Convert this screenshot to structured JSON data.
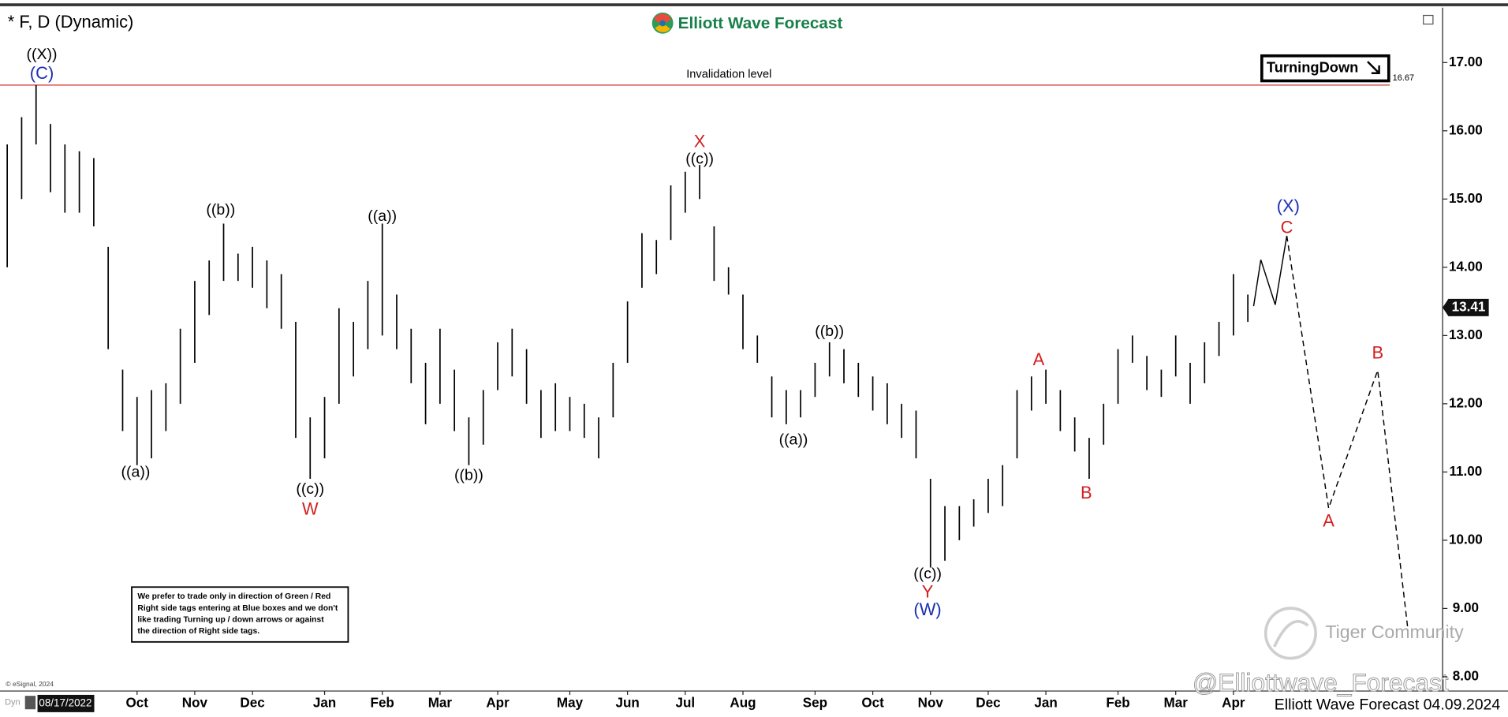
{
  "chart_data": {
    "type": "hl-bars",
    "title": "* F, D (Dynamic)",
    "logo": "Elliott Wave Forecast",
    "signal": "TurningDown",
    "note": [
      "We prefer to trade only in direction of Green / Red",
      "Right side tags entering at Blue boxes and we don't",
      "like trading Turning up / down arrows or against",
      "the direction of Right side tags."
    ],
    "copyright": "© eSignal, 2024",
    "dyn_label": "Dyn",
    "start_date": "08/17/2022",
    "footer": "Elliott Wave Forecast 04.09.2024",
    "watermarks": [
      "@Elliottwave_Forecast",
      "Tiger Community"
    ],
    "color": "#000000",
    "categories": [
      null,
      null,
      null,
      null,
      null,
      null,
      null,
      null,
      null,
      "Oct",
      null,
      null,
      null,
      "Nov",
      null,
      null,
      null,
      "Dec",
      null,
      null,
      null,
      null,
      "Jan",
      null,
      null,
      null,
      "Feb",
      null,
      null,
      null,
      "Mar",
      null,
      null,
      null,
      "Apr",
      null,
      null,
      null,
      null,
      "May",
      null,
      null,
      null,
      "Jun",
      null,
      null,
      null,
      "Jul",
      null,
      null,
      null,
      "Aug",
      null,
      null,
      null,
      null,
      "Sep",
      null,
      null,
      null,
      "Oct",
      null,
      null,
      null,
      "Nov",
      null,
      null,
      null,
      "Dec",
      null,
      null,
      null,
      "Jan",
      null,
      null,
      null,
      null,
      "Feb",
      null,
      null,
      null,
      "Mar",
      null,
      null,
      null,
      "Apr",
      null
    ],
    "high": [
      15.8,
      16.2,
      16.67,
      16.1,
      15.8,
      15.7,
      15.6,
      14.3,
      12.5,
      12.1,
      12.2,
      12.3,
      13.1,
      13.8,
      14.1,
      14.64,
      14.2,
      14.3,
      14.1,
      13.9,
      13.2,
      11.8,
      12.1,
      13.4,
      13.2,
      13.8,
      14.64,
      13.6,
      13.1,
      12.6,
      13.1,
      12.5,
      11.8,
      12.2,
      12.9,
      13.1,
      12.8,
      12.2,
      12.3,
      12.1,
      12.0,
      11.8,
      12.6,
      13.5,
      14.5,
      14.4,
      15.2,
      15.4,
      15.5,
      14.6,
      14.0,
      13.6,
      13.0,
      12.4,
      12.2,
      12.2,
      12.6,
      12.9,
      12.8,
      12.6,
      12.4,
      12.3,
      12.0,
      11.9,
      10.9,
      10.5,
      10.5,
      10.6,
      10.9,
      11.1,
      12.2,
      12.4,
      12.5,
      12.2,
      11.8,
      11.5,
      12.0,
      12.8,
      13.0,
      12.7,
      12.5,
      13.0,
      12.6,
      12.9,
      13.2,
      13.9,
      13.6
    ],
    "low": [
      14.0,
      15.0,
      15.8,
      15.1,
      14.8,
      14.8,
      14.6,
      12.8,
      11.6,
      11.1,
      11.2,
      11.6,
      12.0,
      12.6,
      13.3,
      13.8,
      13.8,
      13.7,
      13.4,
      13.1,
      11.5,
      10.9,
      11.2,
      12.0,
      12.4,
      12.8,
      13.0,
      12.8,
      12.3,
      11.7,
      12.0,
      11.6,
      11.1,
      11.4,
      12.2,
      12.4,
      12.0,
      11.5,
      11.6,
      11.6,
      11.5,
      11.2,
      11.8,
      12.6,
      13.7,
      13.9,
      14.4,
      14.8,
      15.0,
      13.8,
      13.6,
      12.8,
      12.6,
      11.8,
      11.7,
      11.8,
      12.1,
      12.4,
      12.3,
      12.1,
      11.9,
      11.7,
      11.5,
      11.2,
      9.6,
      9.7,
      10.0,
      10.2,
      10.4,
      10.5,
      11.2,
      11.9,
      12.0,
      11.6,
      11.3,
      10.9,
      11.4,
      12.0,
      12.6,
      12.2,
      12.1,
      12.4,
      12.0,
      12.3,
      12.7,
      13.0,
      13.2
    ],
    "current_price": 13.41,
    "invalidation": {
      "label": "Invalidation level",
      "value": 16.67,
      "color": "#d9534f"
    },
    "projection": [
      {
        "style": "solid",
        "x": [
          86.4,
          86.9,
          87.9,
          88.7
        ],
        "values": [
          13.43,
          14.11,
          13.45,
          14.46
        ]
      },
      {
        "style": "dashed",
        "x": [
          88.7,
          91.6,
          95.0,
          97.1
        ],
        "values": [
          14.46,
          10.47,
          12.49,
          8.68
        ]
      }
    ],
    "annotations": [
      {
        "text": "((X))",
        "color": "#000000",
        "at": 2.4,
        "price": 17.11
      },
      {
        "text": "(C)",
        "color": "#1a2fb0",
        "at": 2.4,
        "price": 16.83
      },
      {
        "text": "((a))",
        "color": "#000000",
        "at": 8.9,
        "price": 10.99
      },
      {
        "text": "((b))",
        "color": "#000000",
        "at": 14.8,
        "price": 14.83
      },
      {
        "text": "((c))",
        "color": "#000000",
        "at": 21.0,
        "price": 10.74
      },
      {
        "text": "W",
        "color": "#d21f1f",
        "at": 21.0,
        "price": 10.44
      },
      {
        "text": "((a))",
        "color": "#000000",
        "at": 26.0,
        "price": 14.74
      },
      {
        "text": "((b))",
        "color": "#000000",
        "at": 32.0,
        "price": 10.94
      },
      {
        "text": "X",
        "color": "#d21f1f",
        "at": 48.0,
        "price": 15.83
      },
      {
        "text": "((c))",
        "color": "#000000",
        "at": 48.0,
        "price": 15.58
      },
      {
        "text": "((a))",
        "color": "#000000",
        "at": 54.5,
        "price": 11.46
      },
      {
        "text": "((b))",
        "color": "#000000",
        "at": 57.0,
        "price": 13.05
      },
      {
        "text": "((c))",
        "color": "#000000",
        "at": 63.8,
        "price": 9.5
      },
      {
        "text": "Y",
        "color": "#d21f1f",
        "at": 63.8,
        "price": 9.23
      },
      {
        "text": "(W)",
        "color": "#1a2fb0",
        "at": 63.8,
        "price": 8.97
      },
      {
        "text": "A",
        "color": "#d21f1f",
        "at": 71.5,
        "price": 12.63
      },
      {
        "text": "B",
        "color": "#d21f1f",
        "at": 74.8,
        "price": 10.68
      },
      {
        "text": "(X)",
        "color": "#1a2fb0",
        "at": 88.8,
        "price": 14.88
      },
      {
        "text": "C",
        "color": "#d21f1f",
        "at": 88.7,
        "price": 14.57
      },
      {
        "text": "A",
        "color": "#d21f1f",
        "at": 91.6,
        "price": 10.27
      },
      {
        "text": "B",
        "color": "#d21f1f",
        "at": 95.0,
        "price": 12.73
      }
    ],
    "ylim": [
      7.8,
      17.78
    ],
    "yticks": [
      {
        "value": 8,
        "label": "8.00"
      },
      {
        "value": 9,
        "label": "9.00"
      },
      {
        "value": 10,
        "label": "10.00"
      },
      {
        "value": 11,
        "label": "11.00"
      },
      {
        "value": 12,
        "label": "12.00"
      },
      {
        "value": 13,
        "label": "13.00"
      },
      {
        "value": 14,
        "label": "14.00"
      },
      {
        "value": 15,
        "label": "15.00"
      },
      {
        "value": 16,
        "label": "16.00"
      },
      {
        "value": 17,
        "label": "17.00"
      }
    ]
  }
}
